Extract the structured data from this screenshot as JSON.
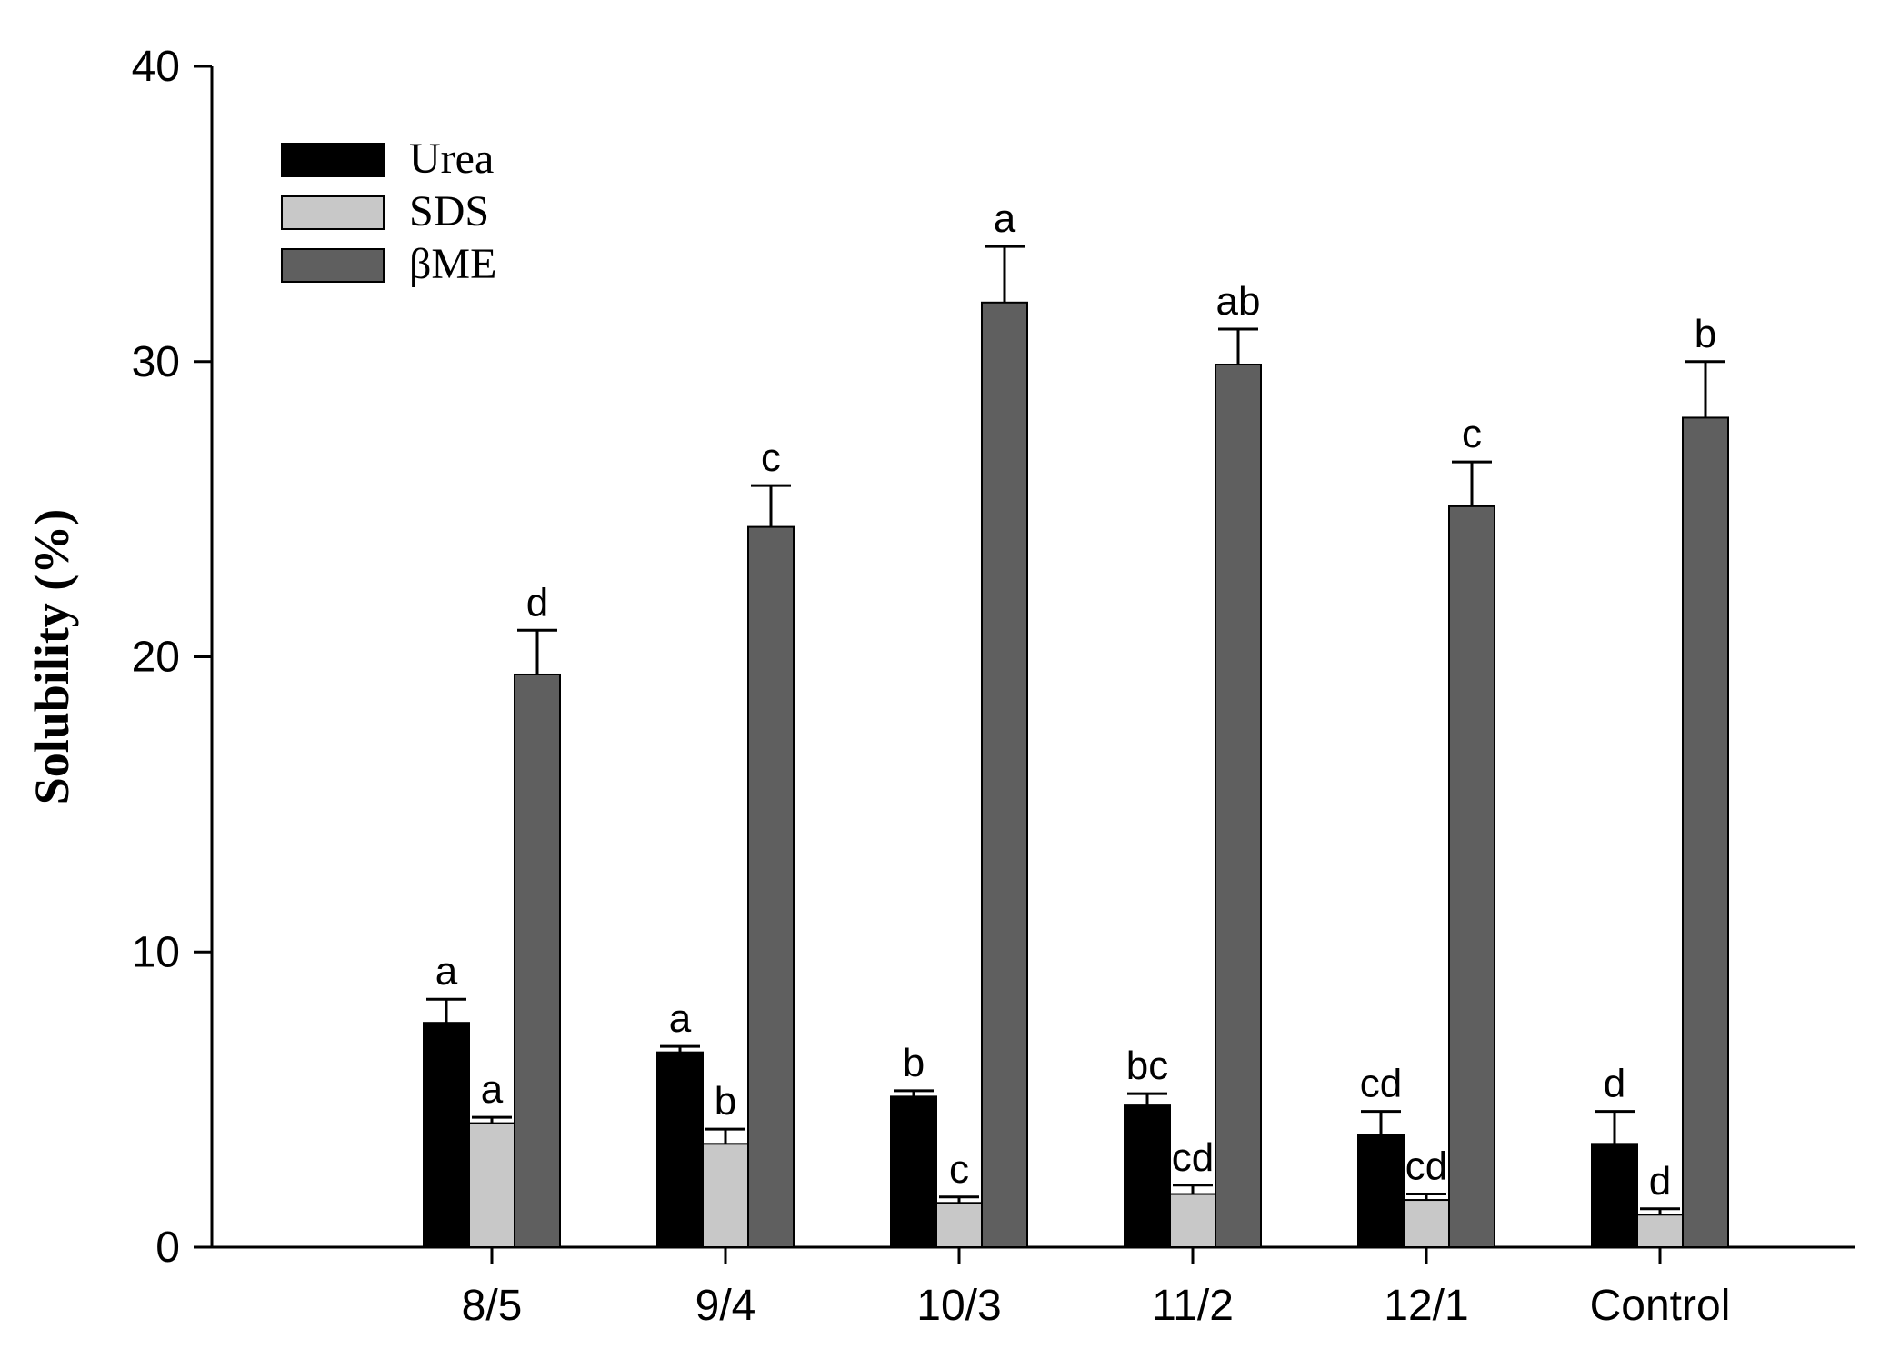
{
  "chart_data": {
    "type": "bar",
    "title": "",
    "xlabel": "",
    "ylabel": "Solubility (%)",
    "ylim": [
      0,
      40
    ],
    "yticks": [
      0,
      10,
      20,
      30,
      40
    ],
    "categories": [
      "8/5",
      "9/4",
      "10/3",
      "11/2",
      "12/1",
      "Control"
    ],
    "legend_position": "top-left",
    "grid": false,
    "series": [
      {
        "name": "Urea",
        "color": "#000000",
        "values": [
          7.6,
          6.6,
          5.1,
          4.8,
          3.8,
          3.5
        ],
        "errors": [
          0.8,
          0.2,
          0.2,
          0.4,
          0.8,
          1.1
        ],
        "letters": [
          "a",
          "a",
          "b",
          "bc",
          "cd",
          "d"
        ]
      },
      {
        "name": "SDS",
        "color": "#c8c8c8",
        "values": [
          4.2,
          3.5,
          1.5,
          1.8,
          1.6,
          1.1
        ],
        "errors": [
          0.2,
          0.5,
          0.2,
          0.3,
          0.2,
          0.2
        ],
        "letters": [
          "a",
          "b",
          "c",
          "cd",
          "cd",
          "d"
        ]
      },
      {
        "name": "βME",
        "color": "#5f5f5f",
        "values": [
          19.4,
          24.4,
          32.0,
          29.9,
          25.1,
          28.1
        ],
        "errors": [
          1.5,
          1.4,
          1.9,
          1.2,
          1.5,
          1.9
        ],
        "letters": [
          "d",
          "c",
          "a",
          "ab",
          "c",
          "b"
        ]
      }
    ]
  }
}
